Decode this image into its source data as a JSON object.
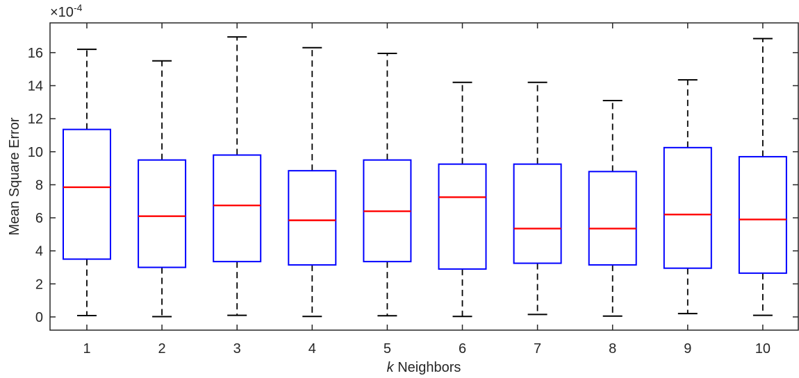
{
  "chart_data": {
    "type": "box",
    "xlabel_italic": "k",
    "xlabel_rest": " Neighbors",
    "ylabel": "Mean Square Error",
    "exponent_base": "×10",
    "exponent_power": "-4",
    "ylim": [
      -0.8,
      17.8
    ],
    "yticks": [
      0,
      2,
      4,
      6,
      8,
      10,
      12,
      14,
      16
    ],
    "ytick_labels": [
      "0",
      "2",
      "4",
      "6",
      "8",
      "10",
      "12",
      "14",
      "16"
    ],
    "categories": [
      "1",
      "2",
      "3",
      "4",
      "5",
      "6",
      "7",
      "8",
      "9",
      "10"
    ],
    "boxes": [
      {
        "min": 0.08,
        "q1": 3.5,
        "median": 7.85,
        "q3": 11.35,
        "max": 16.2
      },
      {
        "min": 0.02,
        "q1": 3.0,
        "median": 6.1,
        "q3": 9.5,
        "max": 15.5
      },
      {
        "min": 0.1,
        "q1": 3.35,
        "median": 6.75,
        "q3": 9.8,
        "max": 16.95
      },
      {
        "min": 0.03,
        "q1": 3.15,
        "median": 5.85,
        "q3": 8.85,
        "max": 16.3
      },
      {
        "min": 0.07,
        "q1": 3.35,
        "median": 6.4,
        "q3": 9.5,
        "max": 15.95
      },
      {
        "min": 0.03,
        "q1": 2.9,
        "median": 7.25,
        "q3": 9.25,
        "max": 14.2
      },
      {
        "min": 0.15,
        "q1": 3.25,
        "median": 5.35,
        "q3": 9.25,
        "max": 14.2
      },
      {
        "min": 0.05,
        "q1": 3.15,
        "median": 5.35,
        "q3": 8.8,
        "max": 13.1
      },
      {
        "min": 0.2,
        "q1": 2.95,
        "median": 6.2,
        "q3": 10.25,
        "max": 14.35
      },
      {
        "min": 0.1,
        "q1": 2.65,
        "median": 5.9,
        "q3": 9.7,
        "max": 16.85
      }
    ],
    "colors": {
      "box": "#0000ff",
      "median": "#ff0000",
      "whisker": "#000000",
      "axes": "#262626"
    },
    "grid": false,
    "legend": "none"
  }
}
